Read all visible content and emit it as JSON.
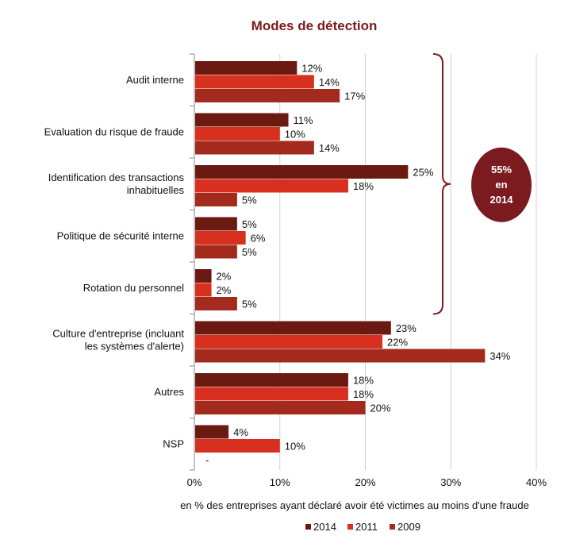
{
  "chart_data": {
    "type": "bar",
    "orientation": "horizontal",
    "title": "Modes de détection",
    "xlabel": "en % des entreprises ayant déclaré avoir été victimes au moins d'une fraude",
    "xlim": [
      0,
      40
    ],
    "xticks": [
      "0%",
      "10%",
      "20%",
      "30%",
      "40%"
    ],
    "grid": true,
    "legend_position": "bottom",
    "categories": [
      [
        "Audit interne"
      ],
      [
        "Evaluation du risque de fraude"
      ],
      [
        "Identification des transactions",
        "inhabituelles"
      ],
      [
        "Politique de sécurité interne"
      ],
      [
        "Rotation du personnel"
      ],
      [
        "Culture d'entreprise (incluant",
        "les systèmes d'alerte)"
      ],
      [
        "Autres"
      ],
      [
        "NSP"
      ]
    ],
    "series": [
      {
        "name": "2014",
        "color": "#6b1a12",
        "values": [
          12,
          11,
          25,
          5,
          2,
          23,
          18,
          4
        ],
        "labels": [
          "12%",
          "11%",
          "25%",
          "5%",
          "2%",
          "23%",
          "18%",
          "4%"
        ]
      },
      {
        "name": "2011",
        "color": "#d8301f",
        "values": [
          14,
          10,
          18,
          6,
          2,
          22,
          18,
          10
        ],
        "labels": [
          "14%",
          "10%",
          "18%",
          "6%",
          "2%",
          "22%",
          "18%",
          "10%"
        ]
      },
      {
        "name": "2009",
        "color": "#a52a1e",
        "values": [
          17,
          14,
          5,
          5,
          5,
          34,
          20,
          null
        ],
        "labels": [
          "17%",
          "14%",
          "5%",
          "5%",
          "5%",
          "34%",
          "20%",
          "-"
        ]
      }
    ],
    "annotation": {
      "text_lines": [
        "55%",
        "en",
        "2014"
      ],
      "bracket_covers_categories": [
        0,
        4
      ],
      "color": "#7b1a1f"
    },
    "colors": {
      "title": "#7b1a1f",
      "grid": "#d0d0d0",
      "axis": "#888888"
    }
  }
}
